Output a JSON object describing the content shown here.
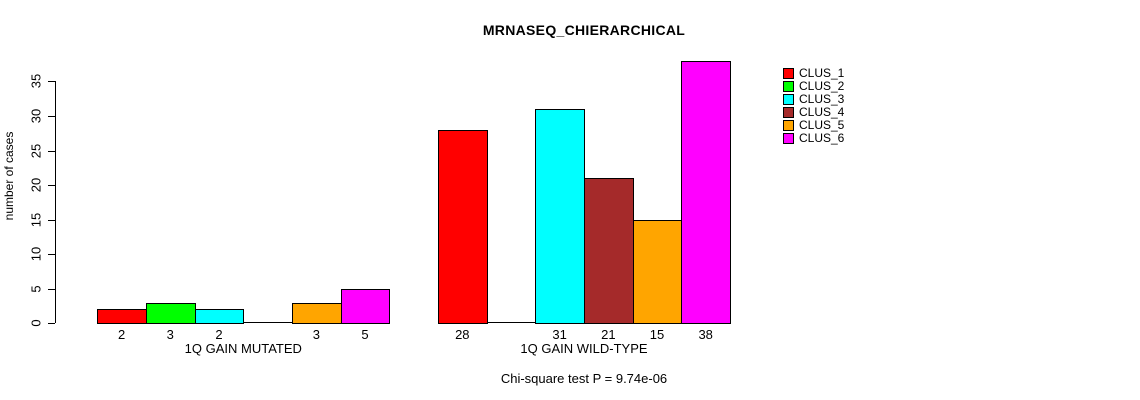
{
  "chart_data": {
    "type": "bar",
    "title": "MRNASEQ_CHIERARCHICAL",
    "ylabel": "number of cases",
    "xlabel": "",
    "ylim": [
      0,
      35
    ],
    "yticks": [
      0,
      5,
      10,
      15,
      20,
      25,
      30,
      35
    ],
    "grid": false,
    "legend_position": "top-right-outside",
    "categories": [
      "1Q GAIN MUTATED",
      "1Q GAIN WILD-TYPE"
    ],
    "series": [
      {
        "name": "CLUS_1",
        "color": "#FF0000",
        "values": [
          2,
          28
        ]
      },
      {
        "name": "CLUS_2",
        "color": "#00FF00",
        "values": [
          3,
          0
        ]
      },
      {
        "name": "CLUS_3",
        "color": "#00FFFF",
        "values": [
          2,
          31
        ]
      },
      {
        "name": "CLUS_4",
        "color": "#A52A2A",
        "values": [
          0,
          21
        ]
      },
      {
        "name": "CLUS_5",
        "color": "#FFA500",
        "values": [
          3,
          15
        ]
      },
      {
        "name": "CLUS_6",
        "color": "#FF00FF",
        "values": [
          5,
          38
        ]
      }
    ],
    "bar_value_labels": {
      "shown": true,
      "zero_values_unlabeled": true
    },
    "annotation": "Chi-square test P = 9.74e-06"
  }
}
